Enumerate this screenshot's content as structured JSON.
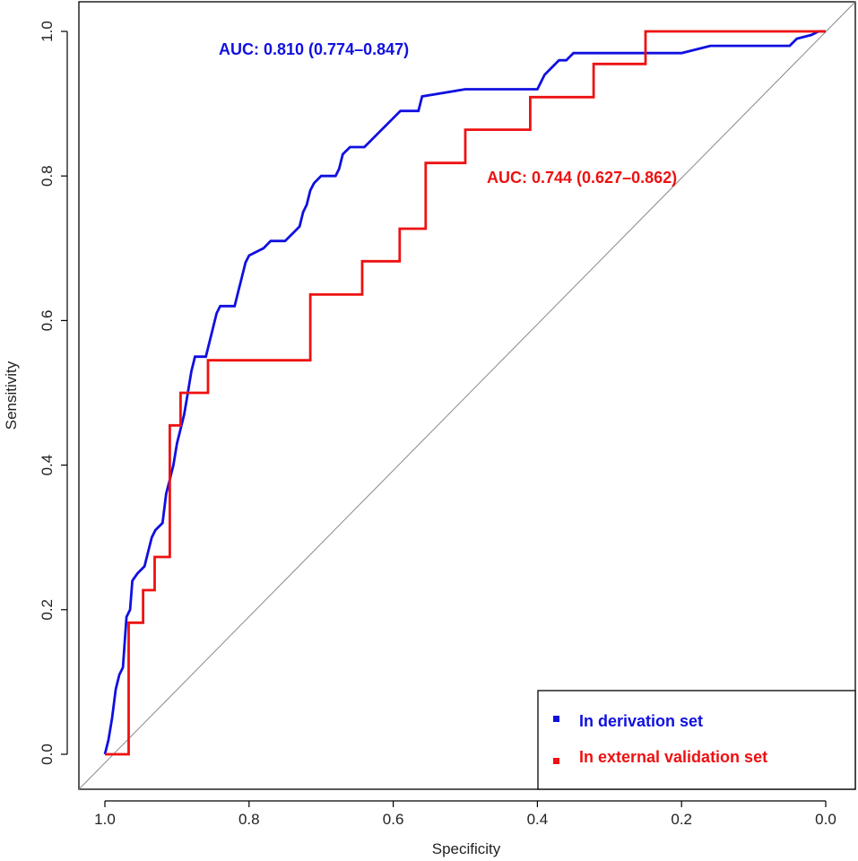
{
  "chart_data": {
    "type": "line",
    "title": "",
    "xlabel": "Specificity",
    "ylabel": "Sensitivity",
    "xlim": [
      1.0,
      0.0
    ],
    "ylim": [
      0.0,
      1.0
    ],
    "xticks": [
      1.0,
      0.8,
      0.6,
      0.4,
      0.2,
      0.0
    ],
    "xtick_labels": [
      "1.0",
      "0.8",
      "0.6",
      "0.4",
      "0.2",
      "0.0"
    ],
    "yticks": [
      0.0,
      0.2,
      0.4,
      0.6,
      0.8,
      1.0
    ],
    "ytick_labels": [
      "0.0",
      "0.2",
      "0.4",
      "0.6",
      "0.8",
      "1.0"
    ],
    "grid": false,
    "reference_line": {
      "from": [
        1.0,
        0.0
      ],
      "to": [
        0.0,
        1.0
      ],
      "color": "#888888"
    },
    "legend_position": "bottom-right",
    "series": [
      {
        "name": "In derivation set",
        "color": "#1010e0",
        "auc_label": "AUC: 0.810 (0.774–0.847)",
        "points": [
          [
            1.0,
            0.0
          ],
          [
            0.995,
            0.02
          ],
          [
            0.99,
            0.05
          ],
          [
            0.985,
            0.09
          ],
          [
            0.98,
            0.11
          ],
          [
            0.975,
            0.12
          ],
          [
            0.97,
            0.19
          ],
          [
            0.965,
            0.2
          ],
          [
            0.962,
            0.24
          ],
          [
            0.955,
            0.25
          ],
          [
            0.945,
            0.26
          ],
          [
            0.94,
            0.28
          ],
          [
            0.935,
            0.3
          ],
          [
            0.93,
            0.31
          ],
          [
            0.92,
            0.32
          ],
          [
            0.915,
            0.36
          ],
          [
            0.91,
            0.38
          ],
          [
            0.905,
            0.4
          ],
          [
            0.9,
            0.43
          ],
          [
            0.895,
            0.45
          ],
          [
            0.89,
            0.47
          ],
          [
            0.885,
            0.5
          ],
          [
            0.88,
            0.53
          ],
          [
            0.875,
            0.55
          ],
          [
            0.86,
            0.55
          ],
          [
            0.855,
            0.57
          ],
          [
            0.85,
            0.59
          ],
          [
            0.845,
            0.61
          ],
          [
            0.84,
            0.62
          ],
          [
            0.82,
            0.62
          ],
          [
            0.815,
            0.64
          ],
          [
            0.81,
            0.66
          ],
          [
            0.805,
            0.68
          ],
          [
            0.8,
            0.69
          ],
          [
            0.78,
            0.7
          ],
          [
            0.77,
            0.71
          ],
          [
            0.75,
            0.71
          ],
          [
            0.74,
            0.72
          ],
          [
            0.73,
            0.73
          ],
          [
            0.725,
            0.75
          ],
          [
            0.72,
            0.76
          ],
          [
            0.715,
            0.78
          ],
          [
            0.71,
            0.79
          ],
          [
            0.7,
            0.8
          ],
          [
            0.68,
            0.8
          ],
          [
            0.675,
            0.81
          ],
          [
            0.67,
            0.83
          ],
          [
            0.66,
            0.84
          ],
          [
            0.64,
            0.84
          ],
          [
            0.63,
            0.85
          ],
          [
            0.62,
            0.86
          ],
          [
            0.61,
            0.87
          ],
          [
            0.6,
            0.88
          ],
          [
            0.59,
            0.89
          ],
          [
            0.565,
            0.89
          ],
          [
            0.56,
            0.91
          ],
          [
            0.5,
            0.92
          ],
          [
            0.45,
            0.92
          ],
          [
            0.4,
            0.92
          ],
          [
            0.39,
            0.94
          ],
          [
            0.38,
            0.95
          ],
          [
            0.37,
            0.96
          ],
          [
            0.36,
            0.96
          ],
          [
            0.35,
            0.97
          ],
          [
            0.25,
            0.97
          ],
          [
            0.2,
            0.97
          ],
          [
            0.16,
            0.98
          ],
          [
            0.1,
            0.98
          ],
          [
            0.05,
            0.98
          ],
          [
            0.04,
            0.99
          ],
          [
            0.02,
            0.995
          ],
          [
            0.01,
            1.0
          ],
          [
            0.0,
            1.0
          ]
        ]
      },
      {
        "name": "In external validation set",
        "color": "#ee1111",
        "auc_label": "AUC: 0.744 (0.627–0.862)",
        "points": [
          [
            1.0,
            0.0
          ],
          [
            0.967,
            0.0
          ],
          [
            0.967,
            0.182
          ],
          [
            0.947,
            0.182
          ],
          [
            0.947,
            0.227
          ],
          [
            0.931,
            0.227
          ],
          [
            0.931,
            0.273
          ],
          [
            0.91,
            0.273
          ],
          [
            0.91,
            0.455
          ],
          [
            0.895,
            0.455
          ],
          [
            0.895,
            0.5
          ],
          [
            0.857,
            0.5
          ],
          [
            0.857,
            0.545
          ],
          [
            0.715,
            0.545
          ],
          [
            0.715,
            0.636
          ],
          [
            0.643,
            0.636
          ],
          [
            0.643,
            0.682
          ],
          [
            0.591,
            0.682
          ],
          [
            0.591,
            0.727
          ],
          [
            0.555,
            0.727
          ],
          [
            0.555,
            0.818
          ],
          [
            0.5,
            0.818
          ],
          [
            0.5,
            0.864
          ],
          [
            0.41,
            0.864
          ],
          [
            0.41,
            0.909
          ],
          [
            0.322,
            0.909
          ],
          [
            0.322,
            0.955
          ],
          [
            0.25,
            0.955
          ],
          [
            0.25,
            1.0
          ],
          [
            0.0,
            1.0
          ]
        ]
      }
    ]
  }
}
